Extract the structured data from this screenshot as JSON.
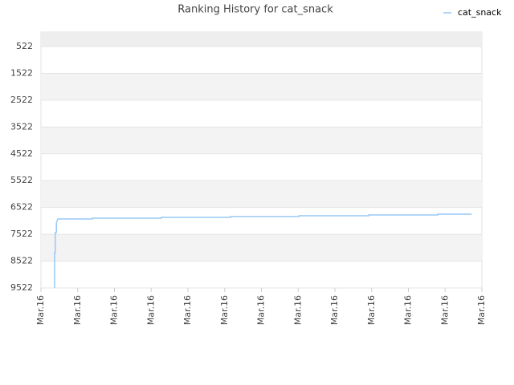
{
  "chart_data": {
    "type": "line",
    "title": "Ranking History for cat_snack",
    "series": [
      {
        "name": "cat_snack",
        "color": "#99c8f5",
        "x": [
          0.37,
          0.37,
          0.39,
          0.39,
          0.42,
          0.42,
          0.46,
          1.4,
          1.4,
          3.28,
          3.28,
          5.16,
          5.16,
          7.02,
          7.02,
          8.92,
          8.92,
          10.8,
          10.8,
          11.72
        ],
        "values": [
          9522,
          8200,
          8200,
          7450,
          7450,
          7100,
          6951,
          6951,
          6921,
          6921,
          6891,
          6891,
          6861,
          6861,
          6831,
          6831,
          6801,
          6801,
          6771,
          6771
        ]
      }
    ],
    "xlim": [
      0,
      12
    ],
    "xticks": [
      {
        "value": 0,
        "label": "Mar.16"
      },
      {
        "value": 1,
        "label": "Mar.16"
      },
      {
        "value": 2,
        "label": "Mar.16"
      },
      {
        "value": 3,
        "label": "Mar.16"
      },
      {
        "value": 4,
        "label": "Mar.16"
      },
      {
        "value": 5,
        "label": "Mar.16"
      },
      {
        "value": 6,
        "label": "Mar.16"
      },
      {
        "value": 7,
        "label": "Mar.16"
      },
      {
        "value": 8,
        "label": "Mar.16"
      },
      {
        "value": 9,
        "label": "Mar.16"
      },
      {
        "value": 10,
        "label": "Mar.16"
      },
      {
        "value": 11,
        "label": "Mar.16"
      },
      {
        "value": 12,
        "label": "Mar.16"
      }
    ],
    "ylim": [
      9522,
      -17
    ],
    "yticks": [
      522,
      1522,
      2522,
      3522,
      4522,
      5522,
      6522,
      7522,
      8522,
      9522
    ],
    "grid": true,
    "legend": "top-right"
  }
}
